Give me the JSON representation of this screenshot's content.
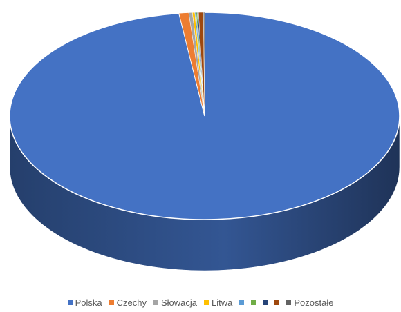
{
  "chart_data": {
    "type": "pie",
    "title": "",
    "labels": [
      "Polska",
      "Czechy",
      "Słowacja",
      "Litwa",
      "",
      "",
      "",
      "",
      "Pozostałe"
    ],
    "values": [
      97.9,
      0.8,
      0.3,
      0.2,
      0.1,
      0.1,
      0.1,
      0.4,
      0.1
    ],
    "colors": [
      "#4472c4",
      "#ed7d31",
      "#a5a5a5",
      "#ffc000",
      "#5b9bd5",
      "#70ad47",
      "#264478",
      "#9e480e",
      "#636363"
    ],
    "start_angle_deg": 90,
    "three_d": true,
    "legend_position": "bottom"
  }
}
